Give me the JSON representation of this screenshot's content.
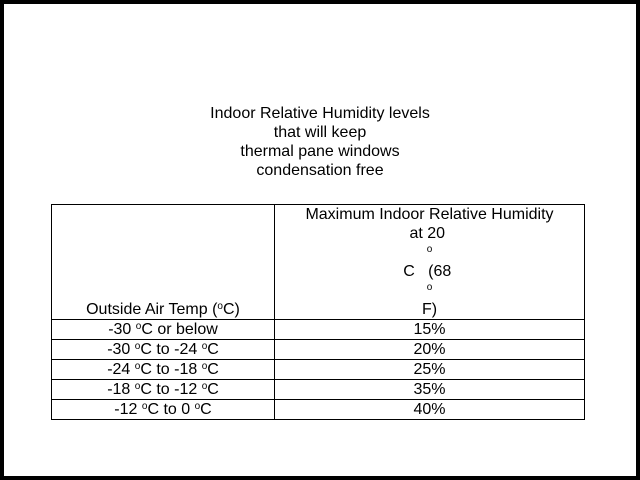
{
  "title": {
    "lines": [
      "Indoor Relative Humidity levels",
      "that will keep",
      "thermal pane windows",
      "condensation free"
    ]
  },
  "table": {
    "header": {
      "col1_prefix": "Outside Air Temp (",
      "col1_sup": "o",
      "col1_suffix": "C)",
      "col2_line1": "Maximum Indoor Relative Humidity",
      "col2_line2_a": "at 20 ",
      "col2_line2_sup1": "o",
      "col2_line2_b": "C   (68 ",
      "col2_line2_sup2": "o",
      "col2_line2_c": "F)"
    },
    "rows": [
      {
        "temp": [
          {
            "t": "-30 "
          },
          {
            "s": "o"
          },
          {
            "t": "C or below"
          }
        ],
        "humidity": "15%"
      },
      {
        "temp": [
          {
            "t": "-30 "
          },
          {
            "s": "o"
          },
          {
            "t": "C to -24 "
          },
          {
            "s": "o"
          },
          {
            "t": "C"
          }
        ],
        "humidity": "20%"
      },
      {
        "temp": [
          {
            "t": "-24 "
          },
          {
            "s": "o"
          },
          {
            "t": "C to -18 "
          },
          {
            "s": "o"
          },
          {
            "t": "C"
          }
        ],
        "humidity": "25%"
      },
      {
        "temp": [
          {
            "t": "-18 "
          },
          {
            "s": "o"
          },
          {
            "t": "C to -12 "
          },
          {
            "s": "o"
          },
          {
            "t": "C"
          }
        ],
        "humidity": "35%"
      },
      {
        "temp": [
          {
            "t": "-12 "
          },
          {
            "s": "o"
          },
          {
            "t": "C to 0 "
          },
          {
            "s": "o"
          },
          {
            "t": "C"
          }
        ],
        "humidity": "40%"
      }
    ]
  }
}
